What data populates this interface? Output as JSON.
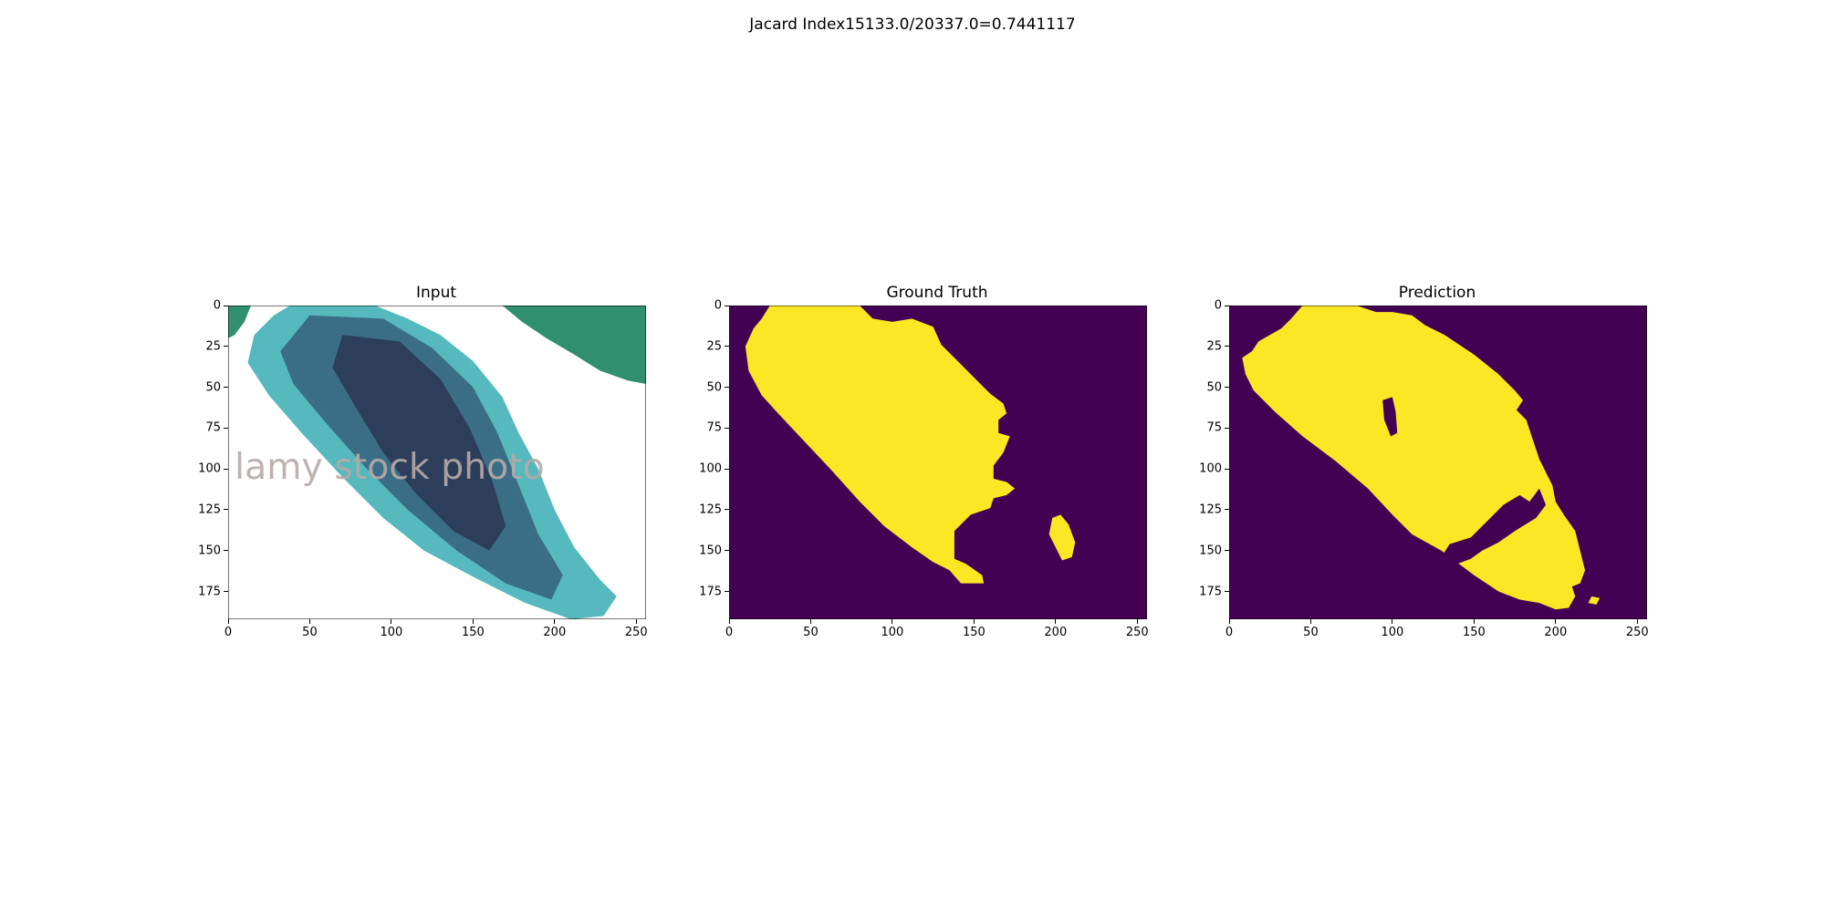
{
  "figure": {
    "suptitle": "Jacard Index15133.0/20337.0=0.7441117"
  },
  "chart_data": [
    {
      "type": "image",
      "title": "Input",
      "xlim": [
        0,
        256
      ],
      "ylim": [
        192,
        0
      ],
      "xticks": [
        "0",
        "50",
        "100",
        "150",
        "200",
        "250"
      ],
      "yticks": [
        "0",
        "25",
        "50",
        "75",
        "100",
        "125",
        "150",
        "175"
      ],
      "watermark_text": "lamy stock photo",
      "colors": {
        "background": "#ffffff",
        "leaf_dark": "#2c3e5a",
        "leaf_mid": "#3a6e86",
        "leaf_light": "#56b9bd",
        "leaf_green": "#2f8f6e",
        "watermark": "#b7aaa8"
      }
    },
    {
      "type": "heatmap",
      "title": "Ground Truth",
      "xlim": [
        0,
        256
      ],
      "ylim": [
        192,
        0
      ],
      "xticks": [
        "0",
        "50",
        "100",
        "150",
        "200",
        "250"
      ],
      "yticks": [
        "0",
        "25",
        "50",
        "75",
        "100",
        "125",
        "150",
        "175"
      ],
      "colormap": "viridis",
      "values": [
        0,
        1
      ],
      "colors": {
        "0": "#440154",
        "1": "#fde725"
      }
    },
    {
      "type": "heatmap",
      "title": "Prediction",
      "xlim": [
        0,
        256
      ],
      "ylim": [
        192,
        0
      ],
      "xticks": [
        "0",
        "50",
        "100",
        "150",
        "200",
        "250"
      ],
      "yticks": [
        "0",
        "25",
        "50",
        "75",
        "100",
        "125",
        "150",
        "175"
      ],
      "colormap": "viridis",
      "values": [
        0,
        1
      ],
      "colors": {
        "0": "#440154",
        "1": "#fde725"
      }
    }
  ]
}
